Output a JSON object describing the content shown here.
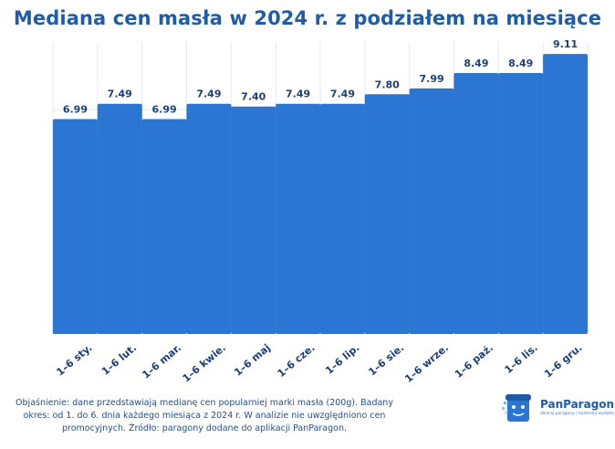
{
  "title": "Mediana cen masła w 2024 r. z podziałem na miesiące",
  "chart_data": {
    "type": "bar",
    "title": "Mediana cen masła w 2024 r. z podziałem na miesiące",
    "categories": [
      "1–6 sty.",
      "1–6 lut.",
      "1–6 mar.",
      "1–6 kwie.",
      "1–6 maj",
      "1–6 cze.",
      "1–6 lip.",
      "1–6 sie.",
      "1–6 wrze.",
      "1–6 paź.",
      "1–6 lis.",
      "1–6 gru."
    ],
    "values": [
      6.99,
      7.49,
      6.99,
      7.49,
      7.4,
      7.49,
      7.49,
      7.8,
      7.99,
      8.49,
      8.49,
      9.11
    ],
    "value_labels": [
      "6.99",
      "7.49",
      "6.99",
      "7.49",
      "7.40",
      "7.49",
      "7.49",
      "7.80",
      "7.99",
      "8.49",
      "8.49",
      "9.11"
    ],
    "ylim": [
      0,
      9.5
    ],
    "grid": true,
    "bar_color": "#2a76d2",
    "label_color": "#1b3f78",
    "grid_color": "#e4e9f1"
  },
  "footnote": {
    "line1": "Objaśnienie: dane przedstawiają medianę cen popularniej marki masła (200g). Badany",
    "line2": "okres:  od 1. do 6. dnia każdego miesiąca z 2024 r. W analizie nie  uwzględniono cen",
    "line3": "promocyjnych. Źródło: paragony dodane do aplikacji PanParagon."
  },
  "logo": {
    "name": "PanParagon",
    "tagline": "zbieraj paragony | kontroluj wydatki",
    "color": "#1f5ca8"
  }
}
